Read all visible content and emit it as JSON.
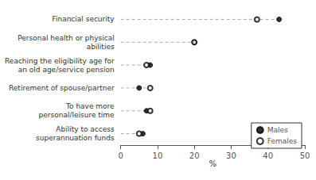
{
  "chart_data": {
    "type": "dot",
    "xlabel": "%",
    "categories": [
      "Financial security",
      "Personal health or physical\nabilities",
      "Reaching the eligibility age for\nan old age/service pension",
      "Retirement of spouse/partner",
      "To have more\npersonal/leisure time",
      "Ability to access\nsuperannuation funds"
    ],
    "series": [
      {
        "name": "Males",
        "color": "black",
        "marker": "circle",
        "values": [
          43,
          20,
          8,
          5,
          7,
          6
        ]
      },
      {
        "name": "Females",
        "color": "black",
        "marker": "emptyCircle",
        "values": [
          37,
          20,
          7,
          8,
          8,
          5
        ]
      }
    ],
    "xlim": [
      0,
      50
    ],
    "xticks": [
      0,
      10,
      20,
      30,
      40,
      50
    ],
    "grid": false,
    "legend": "lower right"
  }
}
